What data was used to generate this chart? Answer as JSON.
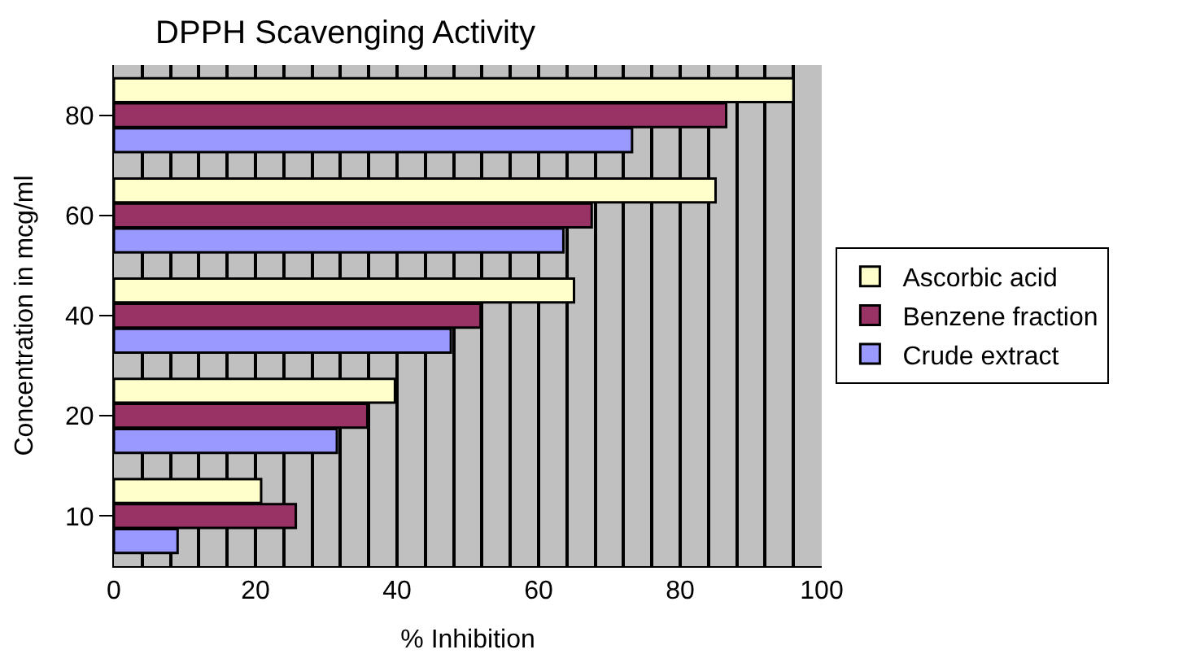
{
  "chart_data": {
    "type": "bar",
    "orientation": "horizontal",
    "title": "DPPH Scavenging Activity",
    "xlabel": "% Inhibition",
    "ylabel": "Concentration in mcg/ml",
    "categories": [
      "80",
      "60",
      "40",
      "20",
      "10"
    ],
    "series": [
      {
        "name": "Ascorbic acid",
        "color": "#ffffcc",
        "values": [
          96,
          85,
          65,
          39.7,
          20.8
        ]
      },
      {
        "name": "Benzene fraction",
        "color": "#993366",
        "values": [
          86.5,
          67.5,
          51.8,
          35.8,
          25.7
        ]
      },
      {
        "name": "Crude extract",
        "color": "#9999ff",
        "values": [
          73.2,
          63.5,
          47.6,
          31.5,
          9
        ]
      }
    ],
    "xlim": [
      0,
      100
    ],
    "xticks": [
      0,
      {
        "value": 4,
        "label": null
      },
      {
        "value": 8,
        "label": null
      },
      {
        "value": 12,
        "label": null
      },
      {
        "value": 16,
        "label": null
      },
      20,
      {
        "value": 24,
        "label": null
      },
      {
        "value": 28,
        "label": null
      },
      {
        "value": 32,
        "label": null
      },
      {
        "value": 36,
        "label": null
      },
      40,
      {
        "value": 44,
        "label": null
      },
      {
        "value": 48,
        "label": null
      },
      {
        "value": 52,
        "label": null
      },
      {
        "value": 56,
        "label": null
      },
      60,
      {
        "value": 64,
        "label": null
      },
      {
        "value": 68,
        "label": null
      },
      {
        "value": 72,
        "label": null
      },
      {
        "value": 76,
        "label": null
      },
      80,
      {
        "value": 84,
        "label": null
      },
      {
        "value": 88,
        "label": null
      },
      {
        "value": 92,
        "label": null
      },
      {
        "value": 96,
        "label": null
      },
      100
    ],
    "grid": "x",
    "legend": "right"
  }
}
